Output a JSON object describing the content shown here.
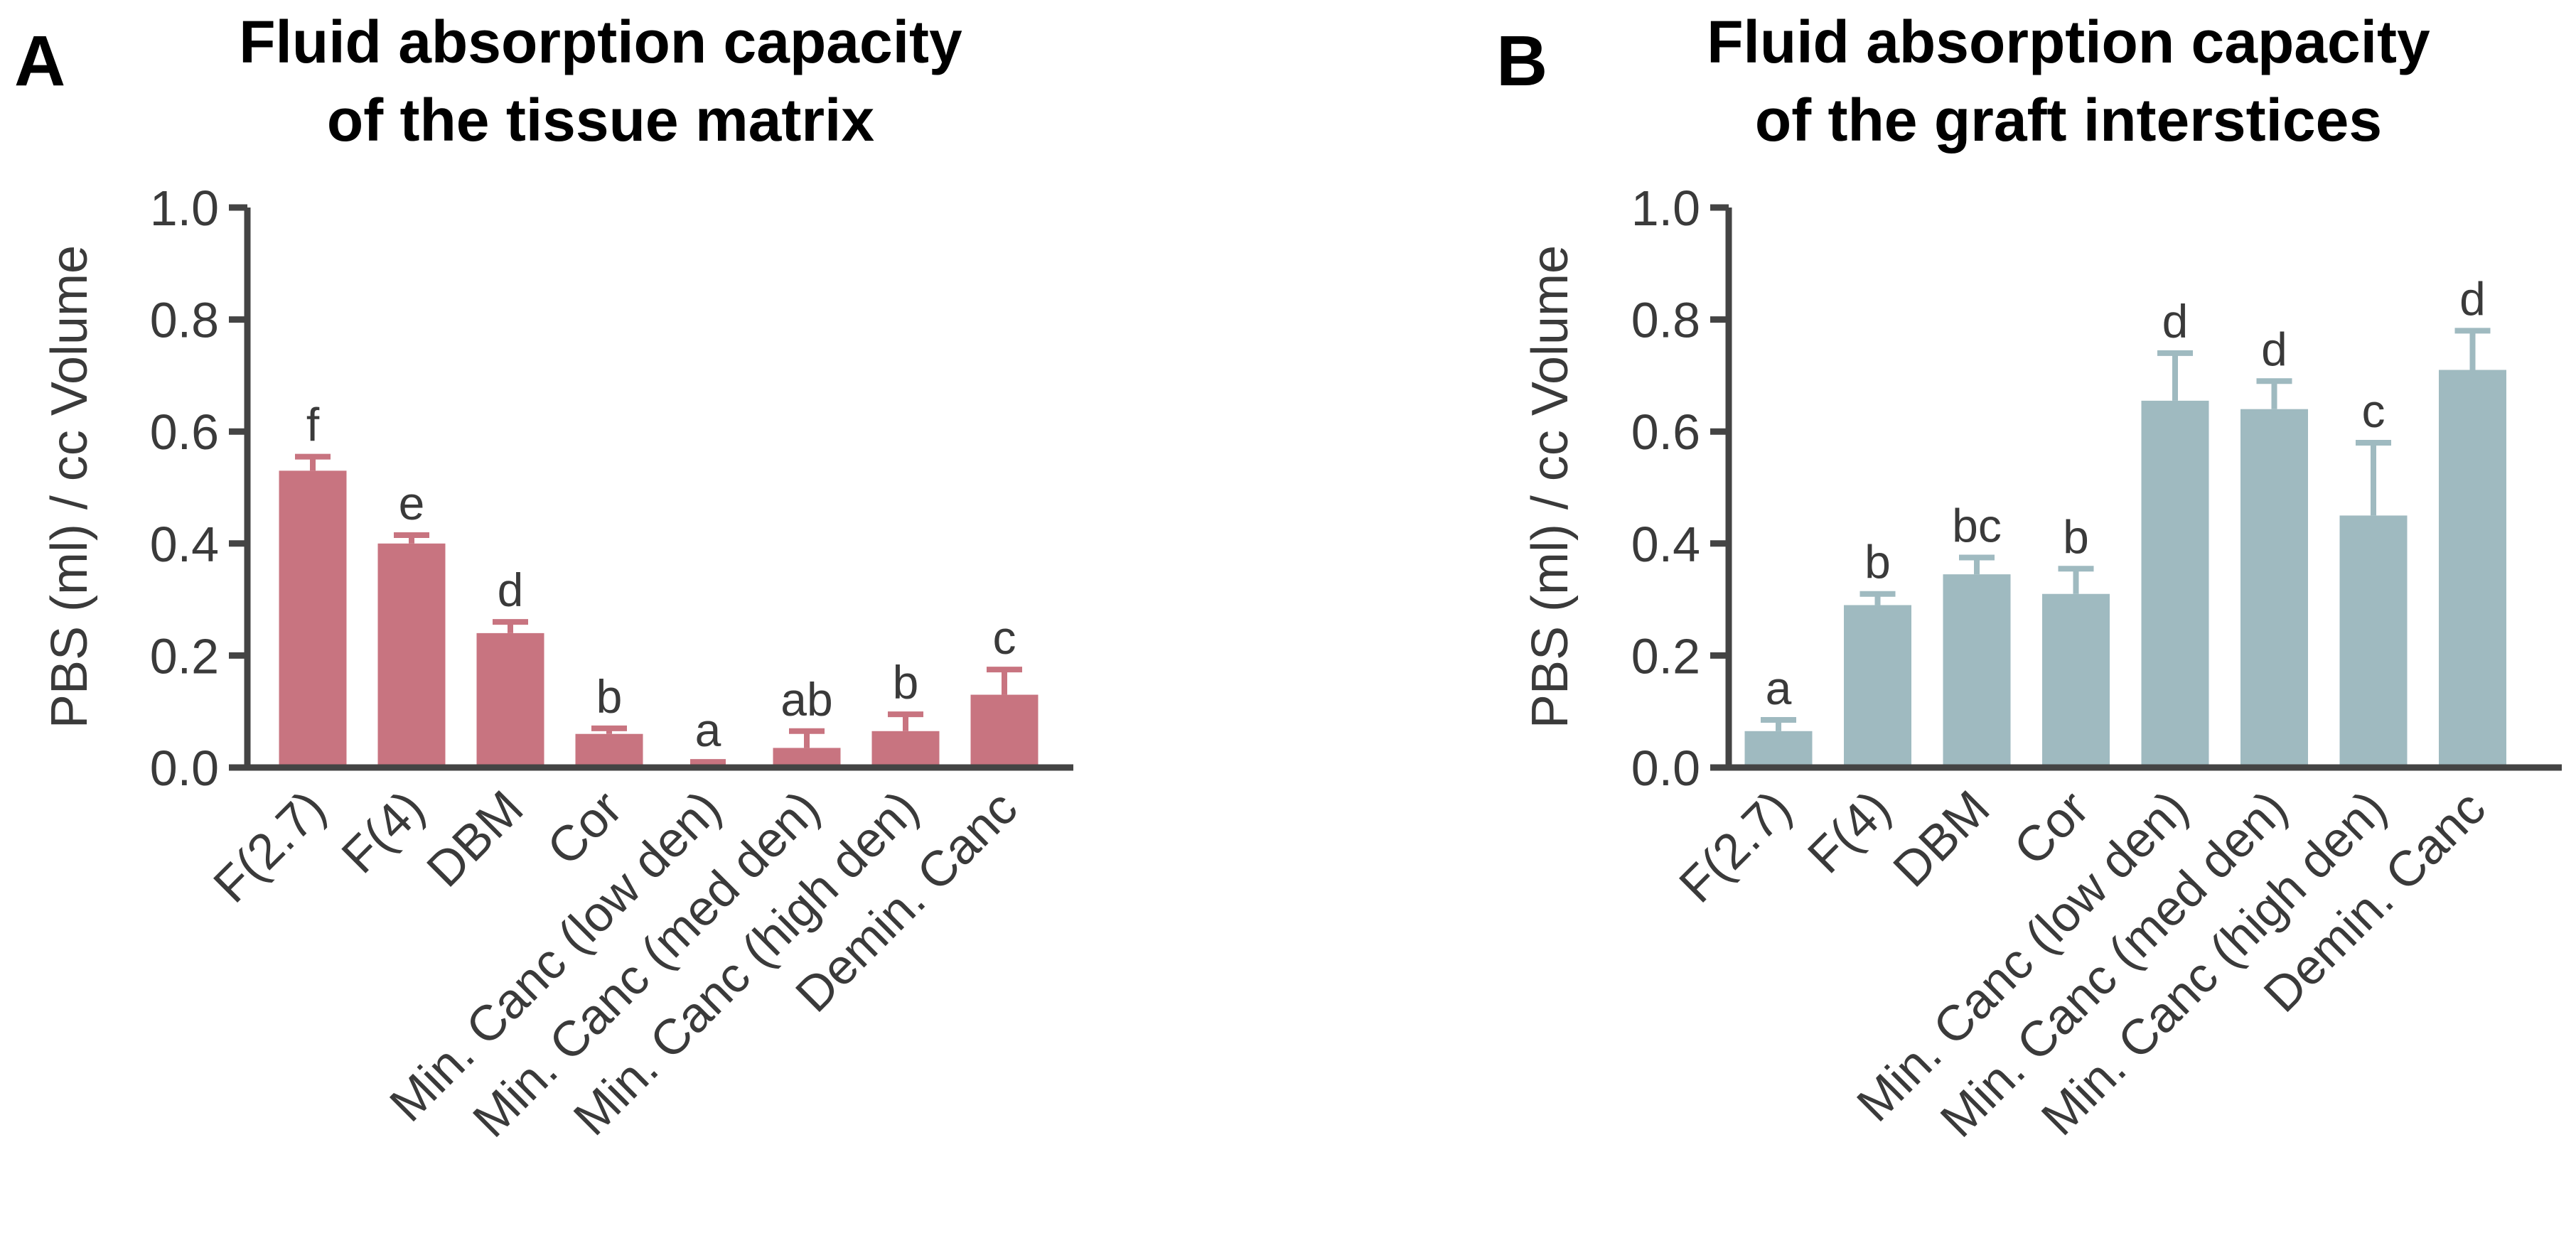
{
  "chart_data": [
    {
      "panel": "A",
      "type": "bar",
      "title": [
        "Fluid absorption capacity",
        "of the tissue matrix"
      ],
      "ylabel": "PBS (ml) / cc Volume",
      "xlabel": "",
      "ylim": [
        0,
        1.0
      ],
      "yticks": [
        "0.0",
        "0.2",
        "0.4",
        "0.6",
        "0.8",
        "1.0"
      ],
      "ytick_values": [
        0,
        0.2,
        0.4,
        0.6,
        0.8,
        1.0
      ],
      "categories": [
        "F(2.7)",
        "F(4)",
        "DBM",
        "Cor",
        "Min. Canc (low den)",
        "Min. Canc (med den)",
        "Min. Canc (high den)",
        "Demin. Canc"
      ],
      "values": [
        0.53,
        0.4,
        0.24,
        0.06,
        0.005,
        0.035,
        0.065,
        0.13
      ],
      "errors": [
        0.025,
        0.015,
        0.02,
        0.01,
        0.005,
        0.03,
        0.03,
        0.045
      ],
      "significance": [
        "f",
        "e",
        "d",
        "b",
        "a",
        "ab",
        "b",
        "c"
      ],
      "color": "#c87480",
      "grid": false
    },
    {
      "panel": "B",
      "type": "bar",
      "title": [
        "Fluid absorption capacity",
        "of the graft interstices"
      ],
      "ylabel": "PBS (ml) / cc Volume",
      "xlabel": "",
      "ylim": [
        0,
        1.0
      ],
      "yticks": [
        "0.0",
        "0.2",
        "0.4",
        "0.6",
        "0.8",
        "1.0"
      ],
      "ytick_values": [
        0,
        0.2,
        0.4,
        0.6,
        0.8,
        1.0
      ],
      "categories": [
        "F(2.7)",
        "F(4)",
        "DBM",
        "Cor",
        "Min. Canc (low den)",
        "Min. Canc (med den)",
        "Min. Canc (high den)",
        "Demin. Canc"
      ],
      "values": [
        0.065,
        0.29,
        0.345,
        0.31,
        0.655,
        0.64,
        0.45,
        0.71
      ],
      "errors": [
        0.02,
        0.02,
        0.03,
        0.045,
        0.085,
        0.05,
        0.13,
        0.07
      ],
      "significance": [
        "a",
        "b",
        "bc",
        "b",
        "d",
        "d",
        "c",
        "d"
      ],
      "color": "#9fbac0",
      "grid": false
    }
  ]
}
